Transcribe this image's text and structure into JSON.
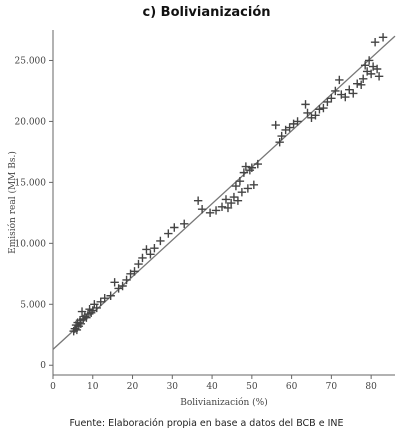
{
  "chart_data": {
    "type": "scatter",
    "title": "c) Bolivianización",
    "xlabel": "Bolivianización (%)",
    "ylabel": "Emisión real (MM Bs.)",
    "source": "Fuente: Elaboración propia en base a datos del BCB e INE",
    "xlim": [
      0,
      86
    ],
    "ylim": [
      -800,
      27500
    ],
    "xticks": [
      0,
      10,
      20,
      30,
      40,
      50,
      60,
      70,
      80
    ],
    "xtick_labels": [
      "0",
      "10",
      "20",
      "30",
      "40",
      "50",
      "60",
      "70",
      "80"
    ],
    "yticks": [
      0,
      5000,
      10000,
      15000,
      20000,
      25000
    ],
    "ytick_labels": [
      "0",
      "5.000",
      "10.000",
      "15.000",
      "20.000",
      "25.000"
    ],
    "grid": false,
    "marker": "plus",
    "colors": {
      "points": "#444444",
      "fit_line": "#777777",
      "axis": "#666666"
    },
    "fit_line": {
      "x": [
        0,
        86
      ],
      "y": [
        1300,
        27000
      ]
    },
    "points": [
      {
        "x": 5.2,
        "y": 2800
      },
      {
        "x": 5.5,
        "y": 3000
      },
      {
        "x": 5.8,
        "y": 3300
      },
      {
        "x": 6.0,
        "y": 2900
      },
      {
        "x": 6.2,
        "y": 3500
      },
      {
        "x": 6.5,
        "y": 3200
      },
      {
        "x": 6.8,
        "y": 3700
      },
      {
        "x": 7.0,
        "y": 3400
      },
      {
        "x": 7.3,
        "y": 4400
      },
      {
        "x": 7.6,
        "y": 3800
      },
      {
        "x": 8.0,
        "y": 4000
      },
      {
        "x": 8.4,
        "y": 3900
      },
      {
        "x": 8.8,
        "y": 4200
      },
      {
        "x": 9.2,
        "y": 4600
      },
      {
        "x": 9.6,
        "y": 4300
      },
      {
        "x": 10.0,
        "y": 4500
      },
      {
        "x": 10.4,
        "y": 5000
      },
      {
        "x": 11.0,
        "y": 4700
      },
      {
        "x": 12.0,
        "y": 5200
      },
      {
        "x": 13.0,
        "y": 5500
      },
      {
        "x": 14.5,
        "y": 5700
      },
      {
        "x": 15.5,
        "y": 6800
      },
      {
        "x": 16.5,
        "y": 6300
      },
      {
        "x": 17.5,
        "y": 6500
      },
      {
        "x": 18.5,
        "y": 7000
      },
      {
        "x": 19.5,
        "y": 7500
      },
      {
        "x": 20.5,
        "y": 7700
      },
      {
        "x": 21.5,
        "y": 8300
      },
      {
        "x": 22.5,
        "y": 8800
      },
      {
        "x": 23.5,
        "y": 9500
      },
      {
        "x": 24.5,
        "y": 9100
      },
      {
        "x": 25.5,
        "y": 9600
      },
      {
        "x": 27.0,
        "y": 10200
      },
      {
        "x": 29.0,
        "y": 10800
      },
      {
        "x": 30.5,
        "y": 11300
      },
      {
        "x": 33.0,
        "y": 11600
      },
      {
        "x": 36.5,
        "y": 13500
      },
      {
        "x": 37.5,
        "y": 12800
      },
      {
        "x": 39.5,
        "y": 12500
      },
      {
        "x": 41.0,
        "y": 12700
      },
      {
        "x": 42.5,
        "y": 13000
      },
      {
        "x": 43.5,
        "y": 13600
      },
      {
        "x": 44.0,
        "y": 12900
      },
      {
        "x": 44.8,
        "y": 13300
      },
      {
        "x": 45.5,
        "y": 13800
      },
      {
        "x": 46.0,
        "y": 14700
      },
      {
        "x": 46.5,
        "y": 13500
      },
      {
        "x": 47.0,
        "y": 15100
      },
      {
        "x": 47.5,
        "y": 14200
      },
      {
        "x": 48.0,
        "y": 15800
      },
      {
        "x": 48.5,
        "y": 16300
      },
      {
        "x": 49.0,
        "y": 14500
      },
      {
        "x": 49.5,
        "y": 16000
      },
      {
        "x": 50.0,
        "y": 16200
      },
      {
        "x": 50.5,
        "y": 14800
      },
      {
        "x": 51.5,
        "y": 16500
      },
      {
        "x": 56.0,
        "y": 19700
      },
      {
        "x": 57.0,
        "y": 18300
      },
      {
        "x": 57.5,
        "y": 18800
      },
      {
        "x": 58.5,
        "y": 19300
      },
      {
        "x": 59.5,
        "y": 19500
      },
      {
        "x": 60.5,
        "y": 19800
      },
      {
        "x": 61.5,
        "y": 20000
      },
      {
        "x": 63.5,
        "y": 21400
      },
      {
        "x": 64.0,
        "y": 20700
      },
      {
        "x": 65.0,
        "y": 20300
      },
      {
        "x": 66.0,
        "y": 20500
      },
      {
        "x": 67.0,
        "y": 21000
      },
      {
        "x": 68.0,
        "y": 21100
      },
      {
        "x": 69.0,
        "y": 21600
      },
      {
        "x": 70.0,
        "y": 21900
      },
      {
        "x": 71.0,
        "y": 22500
      },
      {
        "x": 72.0,
        "y": 23400
      },
      {
        "x": 72.5,
        "y": 22200
      },
      {
        "x": 73.5,
        "y": 22000
      },
      {
        "x": 74.5,
        "y": 22600
      },
      {
        "x": 75.5,
        "y": 22300
      },
      {
        "x": 76.5,
        "y": 23100
      },
      {
        "x": 77.5,
        "y": 23000
      },
      {
        "x": 78.0,
        "y": 23500
      },
      {
        "x": 78.5,
        "y": 24600
      },
      {
        "x": 79.0,
        "y": 24100
      },
      {
        "x": 79.5,
        "y": 25000
      },
      {
        "x": 80.0,
        "y": 23900
      },
      {
        "x": 80.5,
        "y": 24500
      },
      {
        "x": 81.0,
        "y": 26500
      },
      {
        "x": 81.5,
        "y": 24300
      },
      {
        "x": 82.0,
        "y": 23700
      },
      {
        "x": 83.0,
        "y": 26900
      }
    ]
  }
}
